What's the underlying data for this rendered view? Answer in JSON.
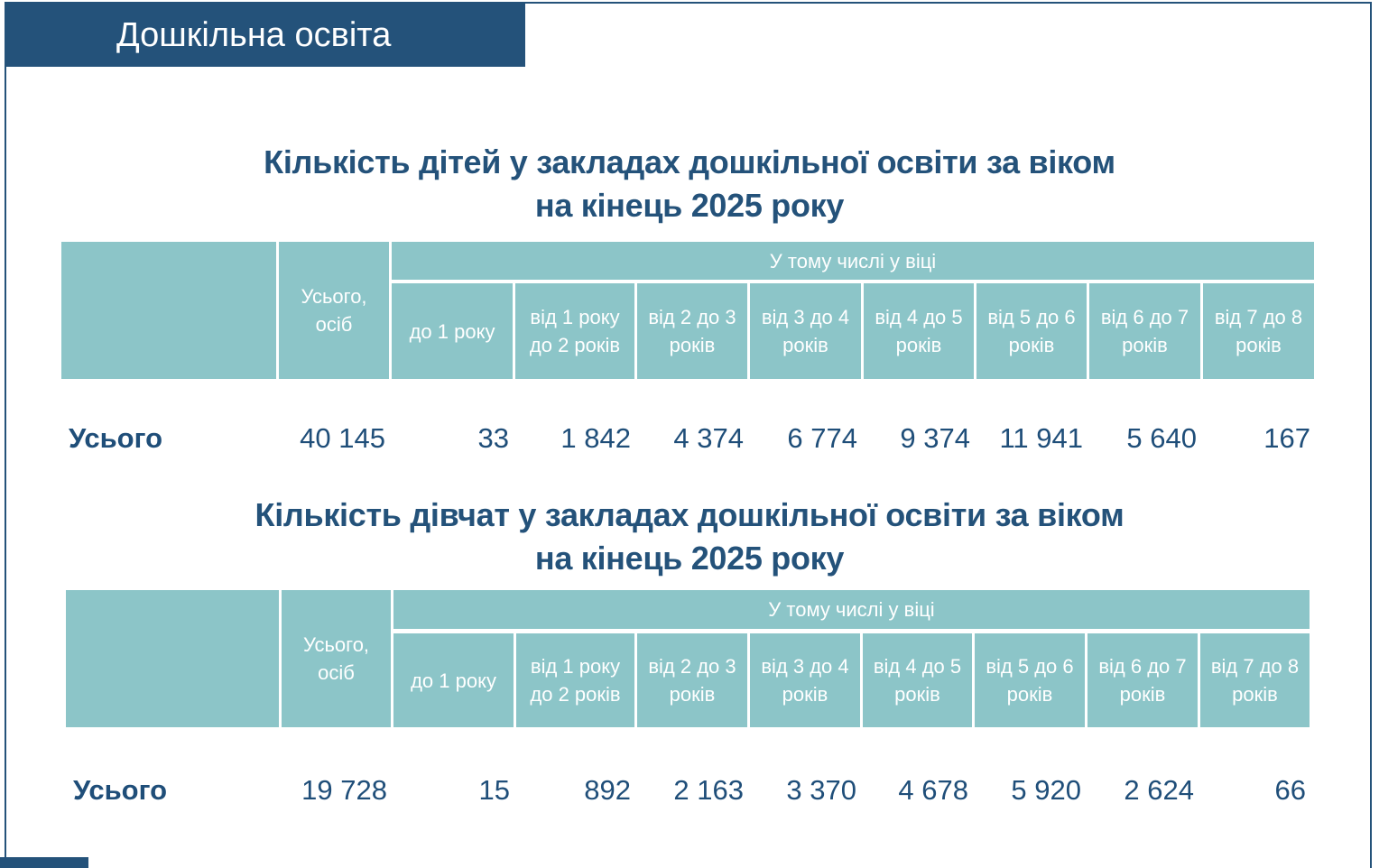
{
  "header": {
    "title": "Дошкільна освіта"
  },
  "tables": [
    {
      "title": [
        "Кількість дітей у закладах дошкільної освіти за віком",
        "на кінець 2025 року"
      ],
      "total_header": "Усього, осіб",
      "group_header": "У тому числі у віці",
      "age_headers": [
        "до 1 року",
        "від 1 року до 2 років",
        "від 2 до 3 років",
        "від 3 до 4 років",
        "від 4 до 5 років",
        "від 5 до 6 років",
        "від 6 до 7 років",
        "від 7 до 8 років"
      ],
      "row": {
        "label": "Усього",
        "total": "40 145",
        "values": [
          "33",
          "1 842",
          "4 374",
          "6 774",
          "9 374",
          "11 941",
          "5 640",
          "167"
        ]
      }
    },
    {
      "title": [
        "Кількість дівчат у закладах дошкільної освіти за віком",
        "на кінець 2025 року"
      ],
      "total_header": "Усього, осіб",
      "group_header": "У тому числі у віці",
      "age_headers": [
        "до 1 року",
        "від 1 року до 2 років",
        "від 2 до 3 років",
        "від 3 до 4 років",
        "від 4 до 5 років",
        "від 5 до 6 років",
        "від 6 до 7 років",
        "від 7 до 8 років"
      ],
      "row": {
        "label": "Усього",
        "total": "19 728",
        "values": [
          "15",
          "892",
          "2 163",
          "3 370",
          "4 678",
          "5 920",
          "2 624",
          "66"
        ]
      }
    }
  ]
}
